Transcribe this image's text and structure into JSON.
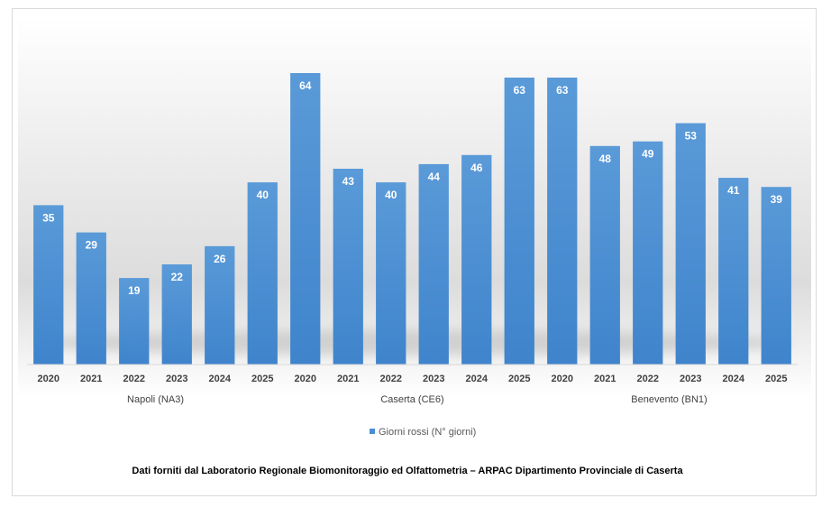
{
  "chart_data": {
    "type": "bar",
    "groups": [
      {
        "label": "Napoli (NA3)",
        "categories": [
          "2020",
          "2021",
          "2022",
          "2023",
          "2024",
          "2025"
        ],
        "values": [
          35,
          29,
          19,
          22,
          26,
          40
        ]
      },
      {
        "label": "Caserta (CE6)",
        "categories": [
          "2020",
          "2021",
          "2022",
          "2023",
          "2024",
          "2025"
        ],
        "values": [
          64,
          43,
          40,
          44,
          46,
          63
        ]
      },
      {
        "label": "Benevento (BN1)",
        "categories": [
          "2020",
          "2021",
          "2022",
          "2023",
          "2024",
          "2025"
        ],
        "values": [
          63,
          48,
          49,
          53,
          41,
          39
        ]
      }
    ],
    "series": [
      {
        "name": "Giorni rossi (N° giorni)"
      }
    ],
    "title": "",
    "xlabel": "",
    "ylabel": "",
    "ylim": [
      0,
      70
    ],
    "grid": false,
    "legend_position": "bottom",
    "data_labels": true,
    "bar_color": "#4a8fd3",
    "caption": "Dati forniti dal Laboratorio Regionale  Biomonitoraggio  ed Olfattometria – ARPAC Dipartimento Provinciale  di Caserta"
  }
}
